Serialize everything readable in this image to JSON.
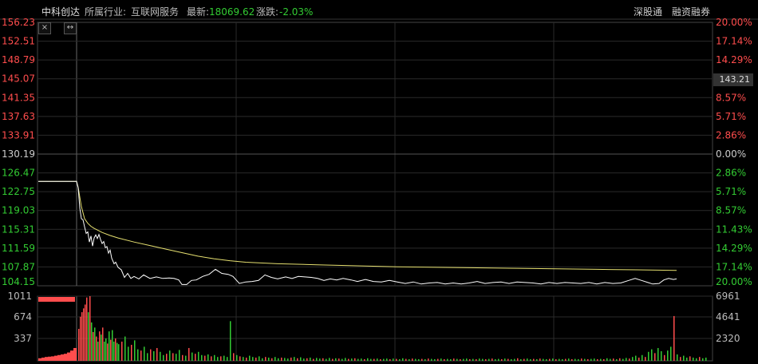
{
  "header": {
    "stock_name": "中科创达",
    "industry_label": "所属行业:",
    "industry": "互联网服务",
    "latest_label": "最新:",
    "latest": "18069.62",
    "change_label": "涨跌:",
    "change": "-2.03%",
    "link_connect": "深股通",
    "link_margin": "融资融券"
  },
  "tools": {
    "close_icon": "×",
    "expand_icon": "↔"
  },
  "current_price_tag": "143.21",
  "colors": {
    "up": "#ff4d4d",
    "down": "#33cc33",
    "neutral": "#cccccc",
    "avg_line": "#e6e070",
    "price_line": "#ffffff",
    "grid": "#2a2a2a",
    "bg": "#000000"
  },
  "chart_data": {
    "type": "line",
    "price_axis_left": [
      "156.23",
      "152.51",
      "148.79",
      "145.07",
      "141.35",
      "137.63",
      "133.91",
      "130.19",
      "126.47",
      "122.75",
      "119.03",
      "115.31",
      "111.59",
      "107.87",
      "104.15"
    ],
    "percent_axis_right": [
      "20.00%",
      "17.14%",
      "14.29%",
      "11.43%",
      "8.57%",
      "5.71%",
      "2.86%",
      "0.00%",
      "2.86%",
      "5.71%",
      "8.57%",
      "11.43%",
      "14.29%",
      "17.14%",
      "20.00%"
    ],
    "ylim": [
      104.15,
      156.23
    ],
    "prev_close": 130.19,
    "price_series": {
      "name": "price",
      "points": [
        [
          0,
          124.8
        ],
        [
          48,
          124.8
        ],
        [
          50,
          123.5
        ],
        [
          52,
          119.5
        ],
        [
          54,
          117.4
        ],
        [
          56,
          117.2
        ],
        [
          58,
          115.8
        ],
        [
          60,
          114.5
        ],
        [
          62,
          114.8
        ],
        [
          64,
          112.8
        ],
        [
          66,
          114.0
        ],
        [
          68,
          112.0
        ],
        [
          70,
          113.6
        ],
        [
          72,
          114.2
        ],
        [
          74,
          113.5
        ],
        [
          76,
          114.3
        ],
        [
          78,
          113.3
        ],
        [
          80,
          112.5
        ],
        [
          82,
          112.9
        ],
        [
          84,
          111.7
        ],
        [
          86,
          111.9
        ],
        [
          88,
          110.6
        ],
        [
          90,
          111.2
        ],
        [
          92,
          109.6
        ],
        [
          95,
          108.5
        ],
        [
          97,
          108.8
        ],
        [
          100,
          107.8
        ],
        [
          104,
          107.3
        ],
        [
          108,
          105.8
        ],
        [
          112,
          106.6
        ],
        [
          116,
          105.6
        ],
        [
          120,
          106.0
        ],
        [
          126,
          105.5
        ],
        [
          132,
          106.3
        ],
        [
          140,
          105.6
        ],
        [
          148,
          105.9
        ],
        [
          156,
          105.6
        ],
        [
          164,
          105.7
        ],
        [
          170,
          105.6
        ],
        [
          176,
          105.3
        ],
        [
          180,
          104.4
        ],
        [
          186,
          104.4
        ],
        [
          192,
          105.2
        ],
        [
          198,
          105.3
        ],
        [
          206,
          106.0
        ],
        [
          214,
          106.4
        ],
        [
          222,
          107.4
        ],
        [
          230,
          106.6
        ],
        [
          238,
          106.4
        ],
        [
          244,
          106.0
        ],
        [
          252,
          104.6
        ],
        [
          260,
          104.9
        ],
        [
          268,
          105.0
        ],
        [
          276,
          105.2
        ],
        [
          284,
          106.3
        ],
        [
          292,
          105.8
        ],
        [
          300,
          105.5
        ],
        [
          310,
          105.9
        ],
        [
          318,
          105.6
        ],
        [
          326,
          106.0
        ],
        [
          334,
          105.9
        ],
        [
          342,
          105.8
        ],
        [
          350,
          105.6
        ],
        [
          358,
          105.2
        ],
        [
          366,
          105.5
        ],
        [
          374,
          105.3
        ],
        [
          382,
          105.6
        ],
        [
          392,
          105.3
        ],
        [
          400,
          105.0
        ],
        [
          410,
          105.4
        ],
        [
          420,
          105.0
        ],
        [
          430,
          104.9
        ],
        [
          440,
          105.2
        ],
        [
          450,
          104.9
        ],
        [
          460,
          104.6
        ],
        [
          470,
          104.9
        ],
        [
          480,
          104.5
        ],
        [
          490,
          104.7
        ],
        [
          500,
          104.8
        ],
        [
          510,
          104.5
        ],
        [
          520,
          104.7
        ],
        [
          530,
          104.5
        ],
        [
          540,
          104.7
        ],
        [
          550,
          105.0
        ],
        [
          560,
          104.6
        ],
        [
          570,
          104.8
        ],
        [
          580,
          104.9
        ],
        [
          590,
          104.6
        ],
        [
          600,
          104.9
        ],
        [
          610,
          104.8
        ],
        [
          620,
          104.7
        ],
        [
          630,
          104.5
        ],
        [
          640,
          104.8
        ],
        [
          650,
          104.6
        ],
        [
          660,
          104.8
        ],
        [
          670,
          104.7
        ],
        [
          680,
          104.6
        ],
        [
          690,
          104.8
        ],
        [
          700,
          104.5
        ],
        [
          710,
          104.8
        ],
        [
          720,
          104.6
        ],
        [
          730,
          104.7
        ],
        [
          740,
          105.2
        ],
        [
          748,
          105.6
        ],
        [
          756,
          105.2
        ],
        [
          764,
          104.8
        ],
        [
          770,
          104.5
        ],
        [
          778,
          104.6
        ],
        [
          784,
          105.3
        ],
        [
          790,
          105.6
        ],
        [
          796,
          105.4
        ],
        [
          800,
          105.5
        ]
      ]
    },
    "avg_series": {
      "name": "avg",
      "points": [
        [
          0,
          124.8
        ],
        [
          48,
          124.8
        ],
        [
          50,
          123.6
        ],
        [
          54,
          119.8
        ],
        [
          58,
          117.4
        ],
        [
          62,
          116.5
        ],
        [
          66,
          115.9
        ],
        [
          70,
          115.5
        ],
        [
          80,
          114.7
        ],
        [
          90,
          114.1
        ],
        [
          100,
          113.6
        ],
        [
          120,
          112.8
        ],
        [
          140,
          112.1
        ],
        [
          160,
          111.4
        ],
        [
          180,
          110.7
        ],
        [
          200,
          110.0
        ],
        [
          220,
          109.5
        ],
        [
          240,
          109.1
        ],
        [
          260,
          108.8
        ],
        [
          300,
          108.5
        ],
        [
          350,
          108.3
        ],
        [
          400,
          108.1
        ],
        [
          450,
          107.9
        ],
        [
          500,
          107.8
        ],
        [
          550,
          107.7
        ],
        [
          600,
          107.6
        ],
        [
          650,
          107.5
        ],
        [
          700,
          107.4
        ],
        [
          750,
          107.3
        ],
        [
          800,
          107.2
        ]
      ]
    },
    "volume_axis_left": [
      "1011",
      "674",
      "337"
    ],
    "volume_axis_right": [
      "6961",
      "4641",
      "2320"
    ],
    "volume_ylim": [
      0,
      1011
    ],
    "volume_bars": [
      [
        50,
        500,
        0
      ],
      [
        52,
        690,
        0
      ],
      [
        54,
        760,
        0
      ],
      [
        56,
        820,
        0
      ],
      [
        58,
        880,
        0
      ],
      [
        60,
        990,
        0
      ],
      [
        62,
        760,
        1
      ],
      [
        64,
        1011,
        0
      ],
      [
        66,
        600,
        1
      ],
      [
        68,
        450,
        0
      ],
      [
        70,
        520,
        1
      ],
      [
        72,
        380,
        0
      ],
      [
        74,
        300,
        1
      ],
      [
        76,
        460,
        0
      ],
      [
        78,
        410,
        1
      ],
      [
        80,
        520,
        0
      ],
      [
        82,
        300,
        1
      ],
      [
        84,
        350,
        1
      ],
      [
        86,
        270,
        0
      ],
      [
        88,
        460,
        1
      ],
      [
        90,
        330,
        0
      ],
      [
        92,
        480,
        1
      ],
      [
        94,
        300,
        1
      ],
      [
        96,
        350,
        0
      ],
      [
        98,
        280,
        1
      ],
      [
        100,
        260,
        1
      ],
      [
        104,
        300,
        0
      ],
      [
        108,
        380,
        1
      ],
      [
        112,
        220,
        1
      ],
      [
        116,
        250,
        0
      ],
      [
        120,
        320,
        1
      ],
      [
        124,
        180,
        1
      ],
      [
        128,
        160,
        0
      ],
      [
        132,
        220,
        1
      ],
      [
        136,
        120,
        1
      ],
      [
        140,
        180,
        0
      ],
      [
        144,
        150,
        1
      ],
      [
        148,
        200,
        0
      ],
      [
        152,
        140,
        1
      ],
      [
        156,
        90,
        1
      ],
      [
        160,
        110,
        0
      ],
      [
        164,
        160,
        1
      ],
      [
        168,
        120,
        0
      ],
      [
        172,
        110,
        1
      ],
      [
        176,
        170,
        1
      ],
      [
        180,
        90,
        0
      ],
      [
        184,
        80,
        1
      ],
      [
        188,
        200,
        0
      ],
      [
        192,
        130,
        1
      ],
      [
        196,
        110,
        0
      ],
      [
        200,
        140,
        1
      ],
      [
        204,
        90,
        1
      ],
      [
        208,
        80,
        0
      ],
      [
        212,
        100,
        1
      ],
      [
        216,
        70,
        0
      ],
      [
        220,
        90,
        1
      ],
      [
        224,
        60,
        1
      ],
      [
        228,
        70,
        0
      ],
      [
        232,
        80,
        1
      ],
      [
        236,
        60,
        1
      ],
      [
        240,
        620,
        1
      ],
      [
        244,
        120,
        0
      ],
      [
        248,
        90,
        1
      ],
      [
        252,
        70,
        0
      ],
      [
        256,
        60,
        1
      ],
      [
        260,
        50,
        0
      ],
      [
        264,
        80,
        1
      ],
      [
        268,
        60,
        1
      ],
      [
        272,
        50,
        0
      ],
      [
        276,
        70,
        1
      ],
      [
        280,
        40,
        1
      ],
      [
        284,
        60,
        0
      ],
      [
        288,
        50,
        1
      ],
      [
        292,
        40,
        0
      ],
      [
        296,
        60,
        1
      ],
      [
        300,
        40,
        1
      ],
      [
        304,
        50,
        0
      ],
      [
        308,
        45,
        1
      ],
      [
        312,
        35,
        1
      ],
      [
        316,
        50,
        0
      ],
      [
        320,
        60,
        1
      ],
      [
        324,
        40,
        0
      ],
      [
        328,
        55,
        1
      ],
      [
        332,
        35,
        1
      ],
      [
        336,
        40,
        0
      ],
      [
        340,
        50,
        1
      ],
      [
        344,
        30,
        0
      ],
      [
        348,
        45,
        1
      ],
      [
        352,
        35,
        1
      ],
      [
        356,
        40,
        0
      ],
      [
        360,
        30,
        1
      ],
      [
        364,
        45,
        1
      ],
      [
        368,
        30,
        0
      ],
      [
        372,
        40,
        1
      ],
      [
        376,
        35,
        0
      ],
      [
        380,
        30,
        1
      ],
      [
        384,
        45,
        1
      ],
      [
        388,
        30,
        0
      ],
      [
        392,
        35,
        1
      ],
      [
        396,
        40,
        0
      ],
      [
        400,
        30,
        1
      ],
      [
        404,
        35,
        1
      ],
      [
        408,
        25,
        0
      ],
      [
        412,
        40,
        1
      ],
      [
        416,
        30,
        1
      ],
      [
        420,
        30,
        0
      ],
      [
        424,
        35,
        1
      ],
      [
        428,
        25,
        0
      ],
      [
        432,
        30,
        1
      ],
      [
        436,
        35,
        1
      ],
      [
        440,
        25,
        0
      ],
      [
        444,
        35,
        1
      ],
      [
        448,
        30,
        0
      ],
      [
        452,
        25,
        1
      ],
      [
        456,
        40,
        1
      ],
      [
        460,
        30,
        0
      ],
      [
        464,
        25,
        1
      ],
      [
        468,
        35,
        0
      ],
      [
        472,
        30,
        1
      ],
      [
        476,
        25,
        1
      ],
      [
        480,
        30,
        0
      ],
      [
        484,
        25,
        1
      ],
      [
        488,
        35,
        0
      ],
      [
        492,
        30,
        1
      ],
      [
        496,
        25,
        1
      ],
      [
        500,
        30,
        0
      ],
      [
        504,
        35,
        1
      ],
      [
        508,
        25,
        0
      ],
      [
        512,
        30,
        1
      ],
      [
        516,
        25,
        1
      ],
      [
        520,
        35,
        0
      ],
      [
        524,
        30,
        1
      ],
      [
        528,
        25,
        0
      ],
      [
        532,
        30,
        1
      ],
      [
        536,
        35,
        1
      ],
      [
        540,
        25,
        0
      ],
      [
        544,
        30,
        1
      ],
      [
        548,
        25,
        0
      ],
      [
        552,
        35,
        1
      ],
      [
        556,
        30,
        1
      ],
      [
        560,
        25,
        0
      ],
      [
        564,
        30,
        1
      ],
      [
        568,
        35,
        0
      ],
      [
        572,
        25,
        1
      ],
      [
        576,
        30,
        1
      ],
      [
        580,
        25,
        0
      ],
      [
        584,
        35,
        1
      ],
      [
        588,
        30,
        0
      ],
      [
        592,
        25,
        1
      ],
      [
        596,
        30,
        1
      ],
      [
        600,
        40,
        0
      ],
      [
        604,
        25,
        1
      ],
      [
        608,
        30,
        0
      ],
      [
        612,
        35,
        1
      ],
      [
        616,
        25,
        1
      ],
      [
        620,
        30,
        0
      ],
      [
        624,
        25,
        1
      ],
      [
        628,
        35,
        0
      ],
      [
        632,
        30,
        1
      ],
      [
        636,
        25,
        1
      ],
      [
        640,
        30,
        0
      ],
      [
        644,
        35,
        1
      ],
      [
        648,
        25,
        0
      ],
      [
        652,
        30,
        1
      ],
      [
        656,
        25,
        1
      ],
      [
        660,
        30,
        0
      ],
      [
        664,
        35,
        1
      ],
      [
        668,
        25,
        0
      ],
      [
        672,
        30,
        1
      ],
      [
        676,
        25,
        1
      ],
      [
        680,
        35,
        0
      ],
      [
        684,
        30,
        1
      ],
      [
        688,
        25,
        0
      ],
      [
        692,
        30,
        1
      ],
      [
        696,
        35,
        1
      ],
      [
        700,
        25,
        0
      ],
      [
        704,
        30,
        1
      ],
      [
        708,
        25,
        0
      ],
      [
        712,
        40,
        1
      ],
      [
        716,
        30,
        1
      ],
      [
        720,
        35,
        0
      ],
      [
        724,
        25,
        1
      ],
      [
        728,
        40,
        0
      ],
      [
        732,
        30,
        1
      ],
      [
        736,
        45,
        1
      ],
      [
        740,
        35,
        0
      ],
      [
        744,
        60,
        1
      ],
      [
        748,
        80,
        1
      ],
      [
        752,
        50,
        0
      ],
      [
        756,
        90,
        1
      ],
      [
        760,
        60,
        0
      ],
      [
        764,
        140,
        1
      ],
      [
        768,
        180,
        1
      ],
      [
        772,
        120,
        0
      ],
      [
        776,
        200,
        1
      ],
      [
        780,
        150,
        1
      ],
      [
        784,
        90,
        0
      ],
      [
        788,
        160,
        1
      ],
      [
        792,
        220,
        1
      ],
      [
        796,
        700,
        0
      ],
      [
        800,
        100,
        1
      ],
      [
        804,
        60,
        0
      ],
      [
        808,
        80,
        1
      ],
      [
        812,
        50,
        1
      ],
      [
        816,
        70,
        0
      ],
      [
        820,
        50,
        1
      ],
      [
        824,
        40,
        1
      ],
      [
        828,
        60,
        0
      ],
      [
        832,
        40,
        1
      ],
      [
        836,
        50,
        1
      ]
    ],
    "volume_bars_note": ""
  }
}
